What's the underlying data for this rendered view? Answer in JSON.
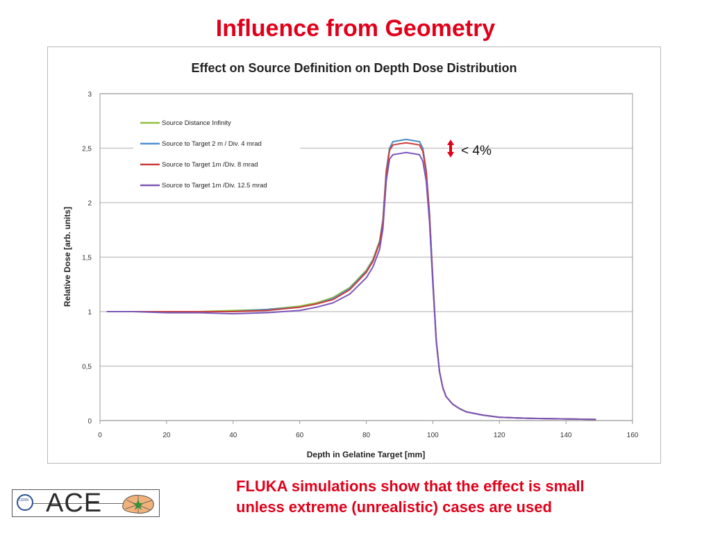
{
  "slide": {
    "title": "Influence from Geometry",
    "title_color": "#e0001a",
    "footer_line1": "FLUKA simulations show that the effect is small",
    "footer_line2": "unless extreme (unrealistic) cases are used",
    "footer_color": "#e0001a"
  },
  "logo": {
    "text": "ACE",
    "emblem_label": "CERN",
    "emblem_icon": "cern-logo-icon",
    "shape_icon": "star-map-icon"
  },
  "annotation": {
    "text": "< 4%",
    "icon": "double-arrow-icon",
    "color": "#e0001a"
  },
  "chart_data": {
    "type": "line",
    "title": "Effect on Source Definition on Depth Dose Distribution",
    "xlabel": "Depth in Gelatine Target [mm]",
    "ylabel": "Relative Dose [arb. units]",
    "xlim": [
      0,
      160
    ],
    "ylim": [
      0,
      3
    ],
    "xticks": [
      0,
      20,
      40,
      60,
      80,
      100,
      120,
      140,
      160
    ],
    "yticks": [
      {
        "v": 0,
        "label": "0"
      },
      {
        "v": 0.5,
        "label": "0,5"
      },
      {
        "v": 1,
        "label": "1"
      },
      {
        "v": 1.5,
        "label": "1,5"
      },
      {
        "v": 2,
        "label": "2"
      },
      {
        "v": 2.5,
        "label": "2,5"
      },
      {
        "v": 3,
        "label": "3"
      }
    ],
    "grid": "horizontal",
    "legend_position": "top-left",
    "x": [
      2,
      10,
      20,
      30,
      40,
      50,
      60,
      65,
      70,
      75,
      80,
      82,
      84,
      85,
      86,
      87,
      88,
      90,
      92,
      94,
      96,
      97,
      98,
      99,
      100,
      101,
      102,
      103,
      104,
      106,
      108,
      110,
      115,
      120,
      125,
      130,
      140,
      149
    ],
    "series": [
      {
        "name": "Source Distance Infinity",
        "color": "#8fbf3f",
        "values": [
          1.0,
          1.0,
          1.0,
          1.0,
          1.01,
          1.02,
          1.05,
          1.08,
          1.13,
          1.22,
          1.38,
          1.48,
          1.65,
          1.85,
          2.3,
          2.5,
          2.56,
          2.57,
          2.58,
          2.57,
          2.56,
          2.5,
          2.3,
          1.9,
          1.3,
          0.75,
          0.45,
          0.3,
          0.22,
          0.15,
          0.11,
          0.08,
          0.05,
          0.03,
          0.025,
          0.02,
          0.015,
          0.01
        ]
      },
      {
        "name": "Source to Target 2 m / Div. 4 mrad",
        "color": "#4f8fd0",
        "values": [
          1.0,
          1.0,
          1.0,
          1.0,
          1.0,
          1.02,
          1.04,
          1.07,
          1.12,
          1.21,
          1.37,
          1.47,
          1.64,
          1.84,
          2.29,
          2.5,
          2.56,
          2.57,
          2.58,
          2.57,
          2.56,
          2.5,
          2.3,
          1.9,
          1.3,
          0.75,
          0.45,
          0.3,
          0.22,
          0.15,
          0.11,
          0.08,
          0.05,
          0.03,
          0.025,
          0.02,
          0.015,
          0.01
        ]
      },
      {
        "name": "Source to Target 1m /Div. 8 mrad",
        "color": "#cc3c3c",
        "values": [
          1.0,
          1.0,
          1.0,
          1.0,
          1.0,
          1.01,
          1.04,
          1.07,
          1.11,
          1.2,
          1.36,
          1.46,
          1.63,
          1.82,
          2.27,
          2.48,
          2.53,
          2.54,
          2.55,
          2.54,
          2.53,
          2.47,
          2.28,
          1.88,
          1.28,
          0.74,
          0.45,
          0.3,
          0.22,
          0.15,
          0.11,
          0.08,
          0.05,
          0.03,
          0.025,
          0.02,
          0.015,
          0.01
        ]
      },
      {
        "name": "Source to Target 1m /Div. 12.5 mrad",
        "color": "#7a56b8",
        "values": [
          1.0,
          1.0,
          0.99,
          0.99,
          0.98,
          0.99,
          1.01,
          1.04,
          1.08,
          1.16,
          1.31,
          1.41,
          1.57,
          1.76,
          2.2,
          2.4,
          2.44,
          2.45,
          2.46,
          2.45,
          2.44,
          2.38,
          2.2,
          1.82,
          1.25,
          0.73,
          0.45,
          0.3,
          0.22,
          0.15,
          0.11,
          0.08,
          0.05,
          0.03,
          0.025,
          0.02,
          0.015,
          0.01
        ]
      }
    ]
  }
}
